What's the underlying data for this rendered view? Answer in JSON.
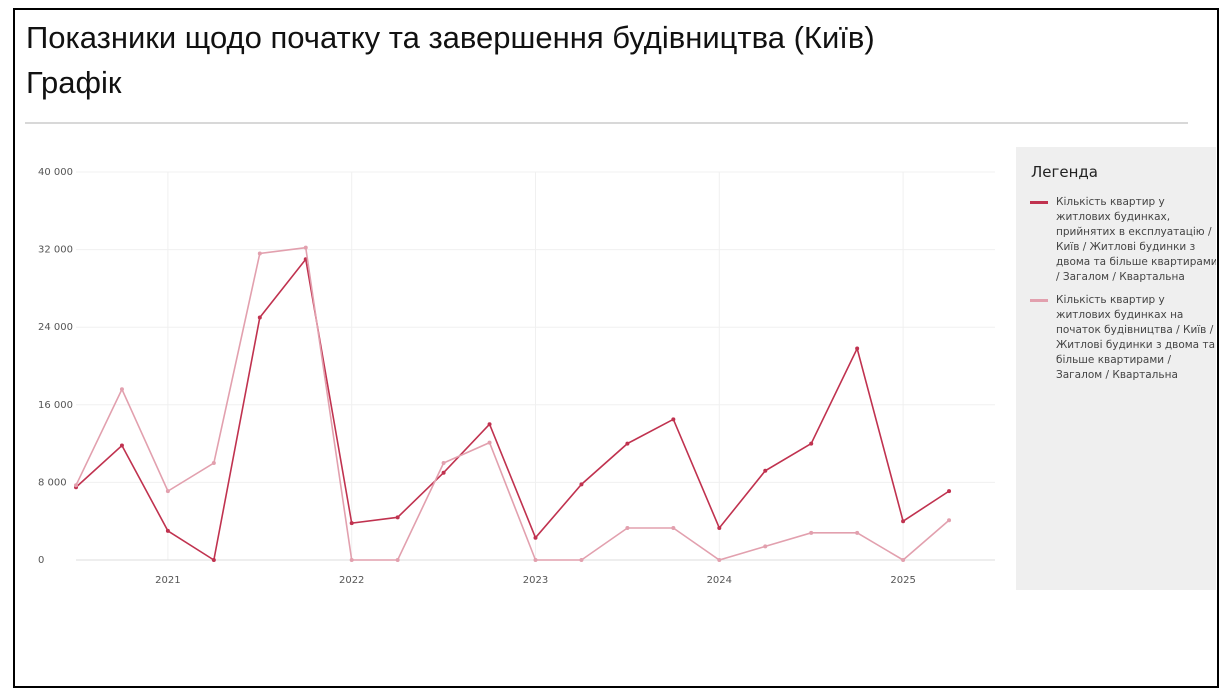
{
  "chart_data": {
    "type": "line",
    "title": "Показники щодо початку та завершення будівництва (Київ)",
    "subtitle": "Графік",
    "legend_title": "Легенда",
    "legend": "right",
    "grid": true,
    "x": [
      2020.5,
      2020.75,
      2021,
      2021.25,
      2021.5,
      2021.75,
      2022,
      2022.25,
      2022.5,
      2022.75,
      2023,
      2023.25,
      2023.5,
      2023.75,
      2024,
      2024.25,
      2024.5,
      2024.75,
      2025,
      2025.25
    ],
    "xlim": [
      2020.5,
      2025.5
    ],
    "xticks": [
      2021,
      2022,
      2023,
      2024,
      2025
    ],
    "ylim": [
      0,
      40000
    ],
    "yticks": [
      0,
      {
        "value": 8000,
        "label": "8 000"
      },
      {
        "value": 16000,
        "label": "16 000"
      },
      {
        "value": 24000,
        "label": "24 000"
      },
      {
        "value": 32000,
        "label": "32 000"
      },
      {
        "value": 40000,
        "label": "40 000"
      }
    ],
    "series": [
      {
        "name": "Кількість квартир у житлових будинках, прийнятих в експлуатацію / Київ / Житлові будинки з двома та більше квартирами / Загалом / Квартальна",
        "color": "#c0324f",
        "values": [
          7500,
          11800,
          3000,
          0,
          25000,
          31000,
          3800,
          4400,
          9000,
          14000,
          2300,
          7800,
          12000,
          14500,
          3300,
          9200,
          12000,
          21800,
          4000,
          7100
        ]
      },
      {
        "name": "Кількість квартир у житлових будинках на початок будівництва / Київ / Житлові будинки з двома та більше квартирами / Загалом / Квартальна",
        "color": "#e2a0ae",
        "values": [
          7700,
          17600,
          7100,
          10000,
          31600,
          32200,
          0,
          0,
          10000,
          12100,
          0,
          0,
          3300,
          3300,
          0,
          1400,
          2800,
          2800,
          0,
          4100
        ]
      }
    ]
  }
}
